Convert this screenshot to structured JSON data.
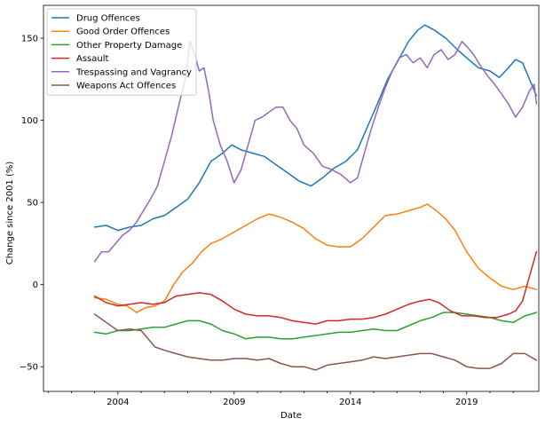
{
  "chart_data": {
    "type": "line",
    "title": "",
    "xlabel": "Date",
    "ylabel": "Change since 2001 (%)",
    "xlim": [
      2000.8,
      2022.1
    ],
    "ylim": [
      -65,
      170
    ],
    "x_major_ticks": [
      2004,
      2009,
      2014,
      2019
    ],
    "x_minor_ticks": [
      2001,
      2002,
      2003,
      2005,
      2006,
      2007,
      2008,
      2010,
      2011,
      2012,
      2013,
      2015,
      2016,
      2017,
      2018,
      2020,
      2021
    ],
    "y_ticks": [
      -50,
      0,
      50,
      100,
      150
    ],
    "grid": false,
    "legend_position": "upper-left",
    "series": [
      {
        "name": "Drug Offences",
        "color": "#1f77b4",
        "points": [
          [
            2003.0,
            35
          ],
          [
            2003.5,
            36
          ],
          [
            2004.0,
            33
          ],
          [
            2004.5,
            35
          ],
          [
            2005.0,
            36
          ],
          [
            2005.5,
            40
          ],
          [
            2006.0,
            42
          ],
          [
            2006.5,
            47
          ],
          [
            2007.0,
            52
          ],
          [
            2007.5,
            62
          ],
          [
            2008.0,
            75
          ],
          [
            2008.5,
            80
          ],
          [
            2008.9,
            85
          ],
          [
            2009.3,
            82
          ],
          [
            2009.8,
            80
          ],
          [
            2010.3,
            78
          ],
          [
            2010.8,
            73
          ],
          [
            2011.3,
            68
          ],
          [
            2011.8,
            63
          ],
          [
            2012.3,
            60
          ],
          [
            2012.8,
            65
          ],
          [
            2013.3,
            71
          ],
          [
            2013.8,
            75
          ],
          [
            2014.3,
            82
          ],
          [
            2014.7,
            95
          ],
          [
            2015.1,
            108
          ],
          [
            2015.6,
            125
          ],
          [
            2016.0,
            135
          ],
          [
            2016.5,
            148
          ],
          [
            2016.9,
            155
          ],
          [
            2017.2,
            158
          ],
          [
            2017.6,
            155
          ],
          [
            2018.1,
            150
          ],
          [
            2018.6,
            143
          ],
          [
            2019.0,
            138
          ],
          [
            2019.5,
            132
          ],
          [
            2020.0,
            130
          ],
          [
            2020.4,
            126
          ],
          [
            2020.8,
            132
          ],
          [
            2021.1,
            137
          ],
          [
            2021.4,
            135
          ],
          [
            2021.7,
            125
          ],
          [
            2022.0,
            115
          ]
        ]
      },
      {
        "name": "Good Order Offences",
        "color": "#ff7f0e",
        "points": [
          [
            2003.0,
            -8
          ],
          [
            2003.5,
            -9
          ],
          [
            2004.0,
            -12
          ],
          [
            2004.4,
            -13
          ],
          [
            2004.8,
            -17
          ],
          [
            2005.2,
            -14
          ],
          [
            2005.6,
            -13
          ],
          [
            2006.0,
            -10
          ],
          [
            2006.4,
            0
          ],
          [
            2006.8,
            8
          ],
          [
            2007.2,
            13
          ],
          [
            2007.6,
            20
          ],
          [
            2008.0,
            25
          ],
          [
            2008.5,
            28
          ],
          [
            2009.0,
            32
          ],
          [
            2009.5,
            36
          ],
          [
            2010.0,
            40
          ],
          [
            2010.5,
            43
          ],
          [
            2011.0,
            41
          ],
          [
            2011.5,
            38
          ],
          [
            2012.0,
            34
          ],
          [
            2012.5,
            28
          ],
          [
            2013.0,
            24
          ],
          [
            2013.5,
            23
          ],
          [
            2014.0,
            23
          ],
          [
            2014.5,
            28
          ],
          [
            2015.0,
            35
          ],
          [
            2015.5,
            42
          ],
          [
            2016.0,
            43
          ],
          [
            2016.5,
            45
          ],
          [
            2017.0,
            47
          ],
          [
            2017.3,
            49
          ],
          [
            2017.7,
            45
          ],
          [
            2018.1,
            40
          ],
          [
            2018.5,
            33
          ],
          [
            2019.0,
            20
          ],
          [
            2019.5,
            10
          ],
          [
            2020.0,
            4
          ],
          [
            2020.5,
            -1
          ],
          [
            2021.0,
            -3
          ],
          [
            2021.5,
            -1
          ],
          [
            2022.0,
            -3
          ]
        ]
      },
      {
        "name": "Other Property Damage",
        "color": "#2ca02c",
        "points": [
          [
            2003.0,
            -29
          ],
          [
            2003.5,
            -30
          ],
          [
            2004.0,
            -28
          ],
          [
            2004.5,
            -28
          ],
          [
            2005.0,
            -27
          ],
          [
            2005.5,
            -26
          ],
          [
            2006.0,
            -26
          ],
          [
            2006.5,
            -24
          ],
          [
            2007.0,
            -22
          ],
          [
            2007.5,
            -22
          ],
          [
            2008.0,
            -24
          ],
          [
            2008.5,
            -28
          ],
          [
            2009.0,
            -30
          ],
          [
            2009.5,
            -33
          ],
          [
            2010.0,
            -32
          ],
          [
            2010.5,
            -32
          ],
          [
            2011.0,
            -33
          ],
          [
            2011.5,
            -33
          ],
          [
            2012.0,
            -32
          ],
          [
            2012.5,
            -31
          ],
          [
            2013.0,
            -30
          ],
          [
            2013.5,
            -29
          ],
          [
            2014.0,
            -29
          ],
          [
            2014.5,
            -28
          ],
          [
            2015.0,
            -27
          ],
          [
            2015.5,
            -28
          ],
          [
            2016.0,
            -28
          ],
          [
            2016.5,
            -25
          ],
          [
            2017.0,
            -22
          ],
          [
            2017.5,
            -20
          ],
          [
            2018.0,
            -17
          ],
          [
            2018.5,
            -17
          ],
          [
            2019.0,
            -18
          ],
          [
            2019.5,
            -19
          ],
          [
            2020.0,
            -20
          ],
          [
            2020.5,
            -22
          ],
          [
            2021.0,
            -23
          ],
          [
            2021.5,
            -19
          ],
          [
            2022.0,
            -17
          ]
        ]
      },
      {
        "name": "Assault",
        "color": "#d62728",
        "points": [
          [
            2003.0,
            -7
          ],
          [
            2003.5,
            -11
          ],
          [
            2004.0,
            -13
          ],
          [
            2004.5,
            -12
          ],
          [
            2005.0,
            -11
          ],
          [
            2005.5,
            -12
          ],
          [
            2006.0,
            -11
          ],
          [
            2006.5,
            -7
          ],
          [
            2007.0,
            -6
          ],
          [
            2007.5,
            -5
          ],
          [
            2008.0,
            -6
          ],
          [
            2008.5,
            -10
          ],
          [
            2009.0,
            -15
          ],
          [
            2009.5,
            -18
          ],
          [
            2010.0,
            -19
          ],
          [
            2010.5,
            -19
          ],
          [
            2011.0,
            -20
          ],
          [
            2011.5,
            -22
          ],
          [
            2012.0,
            -23
          ],
          [
            2012.5,
            -24
          ],
          [
            2013.0,
            -22
          ],
          [
            2013.5,
            -22
          ],
          [
            2014.0,
            -21
          ],
          [
            2014.5,
            -21
          ],
          [
            2015.0,
            -20
          ],
          [
            2015.5,
            -18
          ],
          [
            2016.0,
            -15
          ],
          [
            2016.5,
            -12
          ],
          [
            2017.0,
            -10
          ],
          [
            2017.4,
            -9
          ],
          [
            2017.8,
            -11
          ],
          [
            2018.3,
            -16
          ],
          [
            2018.8,
            -19
          ],
          [
            2019.3,
            -19
          ],
          [
            2019.8,
            -20
          ],
          [
            2020.3,
            -20
          ],
          [
            2020.8,
            -18
          ],
          [
            2021.1,
            -16
          ],
          [
            2021.4,
            -10
          ],
          [
            2021.7,
            5
          ],
          [
            2022.0,
            20
          ]
        ]
      },
      {
        "name": "Trespassing and Vagrancy",
        "color": "#9467bd",
        "points": [
          [
            2003.0,
            14
          ],
          [
            2003.3,
            20
          ],
          [
            2003.6,
            20
          ],
          [
            2003.9,
            25
          ],
          [
            2004.2,
            30
          ],
          [
            2004.5,
            33
          ],
          [
            2004.8,
            38
          ],
          [
            2005.1,
            45
          ],
          [
            2005.4,
            52
          ],
          [
            2005.7,
            60
          ],
          [
            2006.0,
            75
          ],
          [
            2006.3,
            90
          ],
          [
            2006.6,
            108
          ],
          [
            2006.9,
            125
          ],
          [
            2007.1,
            148
          ],
          [
            2007.3,
            140
          ],
          [
            2007.5,
            130
          ],
          [
            2007.7,
            132
          ],
          [
            2007.9,
            118
          ],
          [
            2008.1,
            100
          ],
          [
            2008.4,
            85
          ],
          [
            2008.7,
            75
          ],
          [
            2009.0,
            62
          ],
          [
            2009.3,
            70
          ],
          [
            2009.6,
            85
          ],
          [
            2009.9,
            100
          ],
          [
            2010.2,
            102
          ],
          [
            2010.5,
            105
          ],
          [
            2010.8,
            108
          ],
          [
            2011.1,
            108
          ],
          [
            2011.4,
            100
          ],
          [
            2011.7,
            95
          ],
          [
            2012.0,
            85
          ],
          [
            2012.4,
            80
          ],
          [
            2012.8,
            72
          ],
          [
            2013.2,
            70
          ],
          [
            2013.6,
            67
          ],
          [
            2014.0,
            62
          ],
          [
            2014.3,
            65
          ],
          [
            2014.6,
            80
          ],
          [
            2014.9,
            95
          ],
          [
            2015.2,
            108
          ],
          [
            2015.5,
            120
          ],
          [
            2015.8,
            130
          ],
          [
            2016.1,
            138
          ],
          [
            2016.4,
            140
          ],
          [
            2016.7,
            135
          ],
          [
            2017.0,
            138
          ],
          [
            2017.3,
            132
          ],
          [
            2017.6,
            140
          ],
          [
            2017.9,
            143
          ],
          [
            2018.2,
            137
          ],
          [
            2018.5,
            140
          ],
          [
            2018.8,
            148
          ],
          [
            2019.0,
            145
          ],
          [
            2019.3,
            140
          ],
          [
            2019.6,
            133
          ],
          [
            2019.9,
            127
          ],
          [
            2020.2,
            122
          ],
          [
            2020.5,
            116
          ],
          [
            2020.8,
            110
          ],
          [
            2021.1,
            102
          ],
          [
            2021.4,
            108
          ],
          [
            2021.7,
            118
          ],
          [
            2021.9,
            122
          ],
          [
            2022.0,
            110
          ]
        ]
      },
      {
        "name": "Weapons Act Offences",
        "color": "#8c564b",
        "points": [
          [
            2003.0,
            -18
          ],
          [
            2003.5,
            -23
          ],
          [
            2004.0,
            -28
          ],
          [
            2004.5,
            -27
          ],
          [
            2005.0,
            -28
          ],
          [
            2005.3,
            -33
          ],
          [
            2005.6,
            -38
          ],
          [
            2006.0,
            -40
          ],
          [
            2006.5,
            -42
          ],
          [
            2007.0,
            -44
          ],
          [
            2007.5,
            -45
          ],
          [
            2008.0,
            -46
          ],
          [
            2008.5,
            -46
          ],
          [
            2009.0,
            -45
          ],
          [
            2009.5,
            -45
          ],
          [
            2010.0,
            -46
          ],
          [
            2010.5,
            -45
          ],
          [
            2011.0,
            -48
          ],
          [
            2011.5,
            -50
          ],
          [
            2012.0,
            -50
          ],
          [
            2012.5,
            -52
          ],
          [
            2013.0,
            -49
          ],
          [
            2013.5,
            -48
          ],
          [
            2014.0,
            -47
          ],
          [
            2014.5,
            -46
          ],
          [
            2015.0,
            -44
          ],
          [
            2015.5,
            -45
          ],
          [
            2016.0,
            -44
          ],
          [
            2016.5,
            -43
          ],
          [
            2017.0,
            -42
          ],
          [
            2017.5,
            -42
          ],
          [
            2018.0,
            -44
          ],
          [
            2018.5,
            -46
          ],
          [
            2019.0,
            -50
          ],
          [
            2019.5,
            -51
          ],
          [
            2020.0,
            -51
          ],
          [
            2020.5,
            -48
          ],
          [
            2021.0,
            -42
          ],
          [
            2021.5,
            -42
          ],
          [
            2022.0,
            -46
          ]
        ]
      }
    ]
  }
}
